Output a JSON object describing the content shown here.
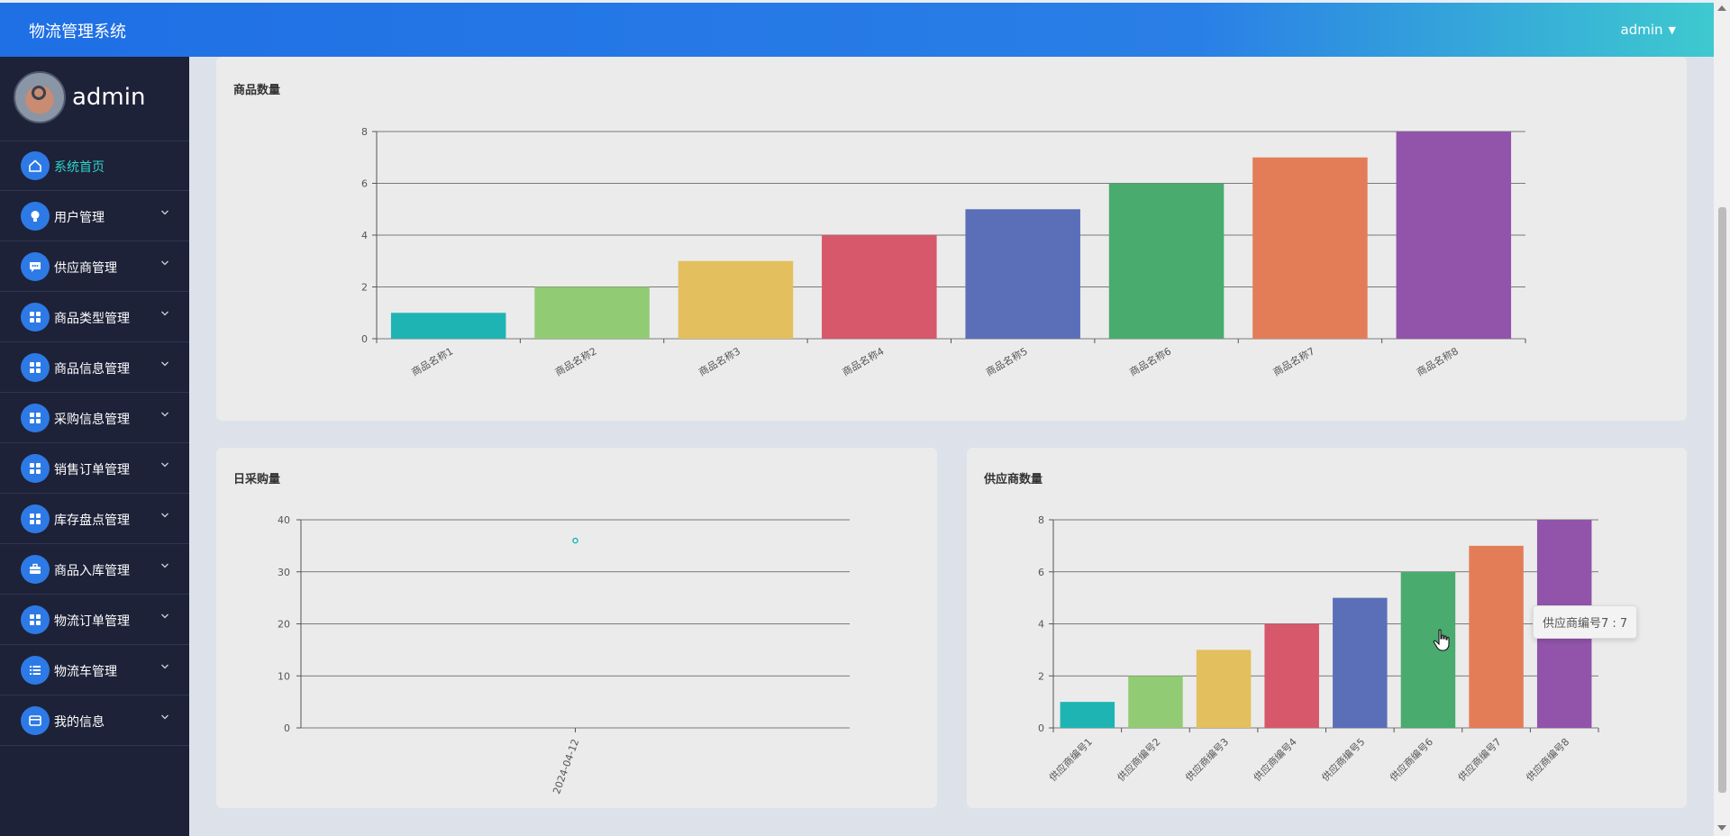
{
  "app": {
    "title": "物流管理系统",
    "user": "admin"
  },
  "sidebar": {
    "profile_name": "admin",
    "items": [
      {
        "label": "系统首页",
        "icon": "home-icon",
        "active": true,
        "expandable": false
      },
      {
        "label": "用户管理",
        "icon": "bulb-icon",
        "active": false,
        "expandable": true
      },
      {
        "label": "供应商管理",
        "icon": "chat-icon",
        "active": false,
        "expandable": true
      },
      {
        "label": "商品类型管理",
        "icon": "grid-icon",
        "active": false,
        "expandable": true
      },
      {
        "label": "商品信息管理",
        "icon": "grid-icon",
        "active": false,
        "expandable": true
      },
      {
        "label": "采购信息管理",
        "icon": "grid-icon",
        "active": false,
        "expandable": true
      },
      {
        "label": "销售订单管理",
        "icon": "grid-icon",
        "active": false,
        "expandable": true
      },
      {
        "label": "库存盘点管理",
        "icon": "grid-icon",
        "active": false,
        "expandable": true
      },
      {
        "label": "商品入库管理",
        "icon": "briefcase-icon",
        "active": false,
        "expandable": true
      },
      {
        "label": "物流订单管理",
        "icon": "grid-icon",
        "active": false,
        "expandable": true
      },
      {
        "label": "物流车管理",
        "icon": "list-icon",
        "active": false,
        "expandable": true
      },
      {
        "label": "我的信息",
        "icon": "wallet-icon",
        "active": false,
        "expandable": true
      }
    ]
  },
  "colors": {
    "series": [
      "#1fb4b4",
      "#91cb74",
      "#e3bf5d",
      "#d6586a",
      "#5a6fb8",
      "#49ab6e",
      "#e37d57",
      "#9154aa"
    ],
    "accent": "#2d7ae6",
    "active_text": "#2fd3c9"
  },
  "chart_data": [
    {
      "id": "products",
      "type": "bar",
      "title": "商品数量",
      "categories": [
        "商品名称1",
        "商品名称2",
        "商品名称3",
        "商品名称4",
        "商品名称5",
        "商品名称6",
        "商品名称7",
        "商品名称8"
      ],
      "values": [
        1,
        2,
        3,
        4,
        5,
        6,
        7,
        8
      ],
      "ylim": [
        0,
        8
      ],
      "yticks": [
        0,
        2,
        4,
        6,
        8
      ],
      "grid": true
    },
    {
      "id": "daily",
      "type": "scatter",
      "title": "日采购量",
      "categories": [
        "2024-04-12"
      ],
      "values": [
        36
      ],
      "ylim": [
        0,
        40
      ],
      "yticks": [
        0,
        10,
        20,
        30,
        40
      ],
      "grid": true
    },
    {
      "id": "suppliers",
      "type": "bar",
      "title": "供应商数量",
      "categories": [
        "供应商编号1",
        "供应商编号2",
        "供应商编号3",
        "供应商编号4",
        "供应商编号5",
        "供应商编号6",
        "供应商编号7",
        "供应商编号8"
      ],
      "values": [
        1,
        2,
        3,
        4,
        5,
        6,
        7,
        8
      ],
      "ylim": [
        0,
        8
      ],
      "yticks": [
        0,
        2,
        4,
        6,
        8
      ],
      "grid": true
    }
  ],
  "tooltip": {
    "text": "供应商编号7 : 7"
  }
}
